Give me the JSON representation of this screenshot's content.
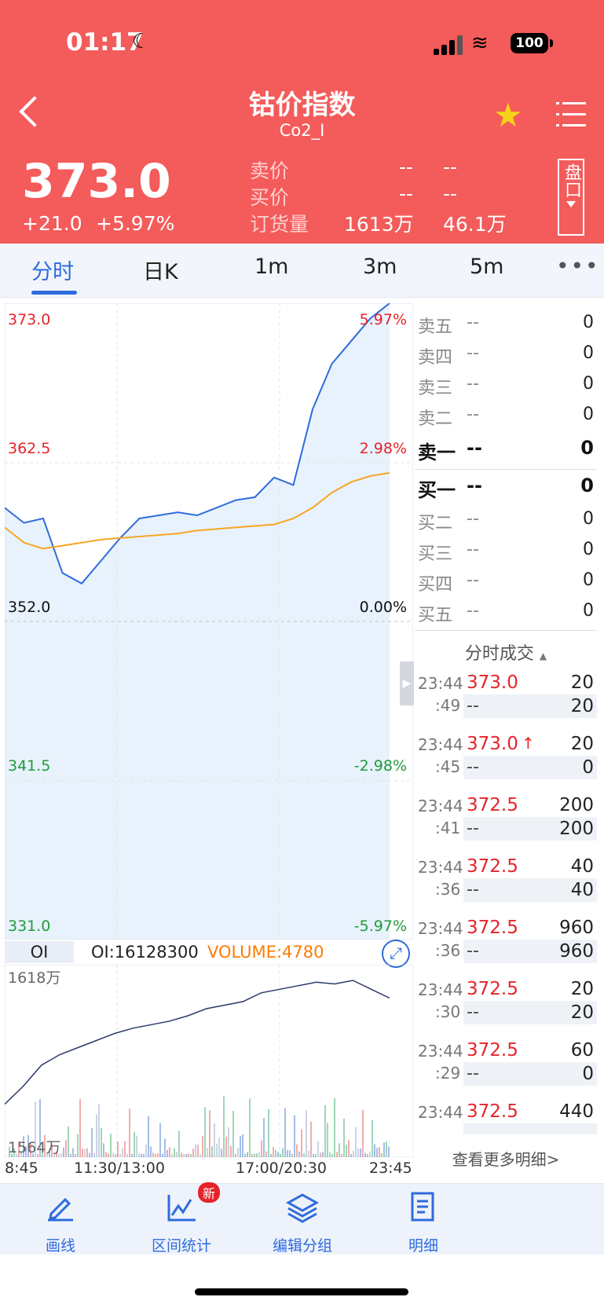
{
  "status": {
    "time": "01:17",
    "battery": "100"
  },
  "header": {
    "title": "钴价指数",
    "symbol": "Co2_I",
    "price": "373.0",
    "change": "+21.0",
    "change_pct": "+5.97%",
    "ask_label": "卖价",
    "bid_label": "买价",
    "volume_label": "订货量",
    "ask_v1": "--",
    "ask_v2": "--",
    "bid_v1": "--",
    "bid_v2": "--",
    "vol_v1": "1613万",
    "vol_v2": "46.1万",
    "pankou": "盘口"
  },
  "tabs": [
    {
      "label": "分时"
    },
    {
      "label": "日K"
    },
    {
      "label": "1m"
    },
    {
      "label": "3m"
    },
    {
      "label": "5m"
    }
  ],
  "chart": {
    "y_labels": [
      {
        "price": "373.0",
        "pct": "5.97%"
      },
      {
        "price": "362.5",
        "pct": "2.98%"
      },
      {
        "price": "352.0",
        "pct": "0.00%"
      },
      {
        "price": "341.5",
        "pct": "-2.98%"
      },
      {
        "price": "331.0",
        "pct": "-5.97%"
      }
    ],
    "oi_box": "OI",
    "oi_text": "OI:16128300",
    "volume_text": "VOLUME:4780",
    "oi_high": "1618万",
    "oi_low": "1564万",
    "x_labels": [
      "8:45",
      "11:30/13:00",
      "17:00/20:30",
      "23:45"
    ]
  },
  "chart_data": {
    "type": "line",
    "title": "",
    "ylim": [
      331.0,
      373.0
    ],
    "series": [
      {
        "values": [
          359.5,
          358.5,
          358.8,
          355.2,
          354.5,
          356.0,
          357.5,
          358.8,
          359.0,
          359.2,
          359.0,
          359.5,
          360.0,
          360.2,
          361.5,
          361.0,
          366.0,
          369.0,
          370.5,
          372.0,
          373.0
        ]
      },
      {
        "values": [
          358.2,
          357.2,
          356.8,
          357.0,
          357.2,
          357.4,
          357.5,
          357.6,
          357.7,
          357.8,
          358.0,
          358.1,
          358.2,
          358.3,
          358.4,
          358.8,
          359.5,
          360.5,
          361.2,
          361.6,
          361.8
        ]
      }
    ]
  },
  "orderbook": {
    "asks": [
      {
        "name": "卖五",
        "price": "--",
        "qty": "0"
      },
      {
        "name": "卖四",
        "price": "--",
        "qty": "0"
      },
      {
        "name": "卖三",
        "price": "--",
        "qty": "0"
      },
      {
        "name": "卖二",
        "price": "--",
        "qty": "0"
      },
      {
        "name": "卖一",
        "price": "--",
        "qty": "0"
      }
    ],
    "bids": [
      {
        "name": "买一",
        "price": "--",
        "qty": "0"
      },
      {
        "name": "买二",
        "price": "--",
        "qty": "0"
      },
      {
        "name": "买三",
        "price": "--",
        "qty": "0"
      },
      {
        "name": "买四",
        "price": "--",
        "qty": "0"
      },
      {
        "name": "买五",
        "price": "--",
        "qty": "0"
      }
    ]
  },
  "ticks": {
    "title": "分时成交",
    "rows": [
      {
        "time": "23:44",
        "sec": ":49",
        "price": "373.0",
        "qty": "20",
        "sub": "--",
        "subqty": "20"
      },
      {
        "time": "23:44",
        "sec": ":45",
        "price": "373.0",
        "qty": "20",
        "sub": "--",
        "subqty": "0"
      },
      {
        "time": "23:44",
        "sec": ":41",
        "price": "372.5",
        "qty": "200",
        "sub": "--",
        "subqty": "200"
      },
      {
        "time": "23:44",
        "sec": ":36",
        "price": "372.5",
        "qty": "40",
        "sub": "--",
        "subqty": "40"
      },
      {
        "time": "23:44",
        "sec": ":36",
        "price": "372.5",
        "qty": "960",
        "sub": "--",
        "subqty": "960"
      },
      {
        "time": "23:44",
        "sec": ":30",
        "price": "372.5",
        "qty": "20",
        "sub": "--",
        "subqty": "20"
      },
      {
        "time": "23:44",
        "sec": ":29",
        "price": "372.5",
        "qty": "60",
        "sub": "--",
        "subqty": "0"
      },
      {
        "time": "23:44",
        "sec": "",
        "price": "372.5",
        "qty": "440",
        "sub": "",
        "subqty": ""
      }
    ],
    "view_more": "查看更多明细>"
  },
  "toolbar": {
    "draw": "画线",
    "stats": "区间统计",
    "stats_badge": "新",
    "group": "编辑分组",
    "detail": "明细"
  },
  "colors": {
    "header_bg": "#f45b5b",
    "up": "#e5242a",
    "down": "#1f9b3a",
    "accent": "#2f6bdc",
    "avg_line": "#f5a623"
  }
}
